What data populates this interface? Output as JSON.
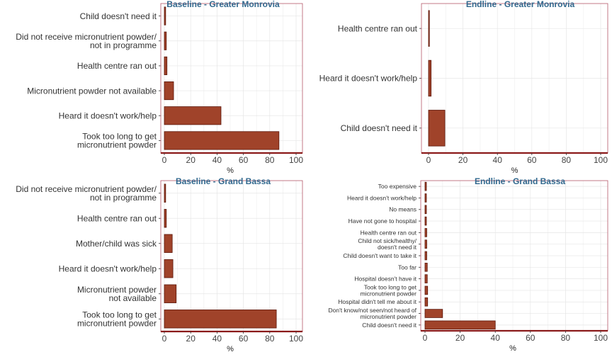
{
  "chart_data": [
    {
      "type": "bar",
      "orientation": "horizontal",
      "title": "Baseline - Greater Monrovia",
      "xlabel": "%",
      "xlim": [
        0,
        100
      ],
      "xticks": [
        0,
        20,
        40,
        60,
        80,
        100
      ],
      "categories": [
        "Child doesn't need it",
        "Did not receive micronutrient powder/\nnot in programme",
        "Health centre ran out",
        "Micronutrient powder not available",
        "Heard it doesn't work/help",
        "Took too long to get\nmicronutrient powder"
      ],
      "values": [
        1,
        1.5,
        2,
        7,
        43,
        87
      ],
      "bar_color": "#a0432a",
      "grid": true
    },
    {
      "type": "bar",
      "orientation": "horizontal",
      "title": "Endline - Greater Monrovia",
      "xlabel": "%",
      "xlim": [
        0,
        100
      ],
      "xticks": [
        0,
        20,
        40,
        60,
        80,
        100
      ],
      "categories": [
        "Health centre ran out",
        "Heard it doesn't work/help",
        "Child doesn't need it"
      ],
      "values": [
        0.5,
        1.5,
        9.5
      ],
      "bar_color": "#a0432a",
      "grid": true
    },
    {
      "type": "bar",
      "orientation": "horizontal",
      "title": "Baseline - Grand Bassa",
      "xlabel": "%",
      "xlim": [
        0,
        100
      ],
      "xticks": [
        0,
        20,
        40,
        60,
        80,
        100
      ],
      "categories": [
        "Did not receive micronutrient powder/\nnot in programme",
        "Health centre ran out",
        "Mother/child was sick",
        "Heard it doesn't work/help",
        "Micronutrient powder\nnot available",
        "Took too long to get\nmicronutrient powder"
      ],
      "values": [
        1,
        1.5,
        6,
        6.5,
        9,
        85
      ],
      "bar_color": "#a0432a",
      "grid": true
    },
    {
      "type": "bar",
      "orientation": "horizontal",
      "title": "Endline - Grand Bassa",
      "xlabel": "%",
      "xlim": [
        0,
        100
      ],
      "xticks": [
        0,
        20,
        40,
        60,
        80,
        100
      ],
      "categories": [
        "Too expensive",
        "Heard it doesn't work/help",
        "No means",
        "Have not gone to hospital",
        "Health centre ran out",
        "Child not sick/healthy/\ndoesn't need it",
        "Child doesn't want to take it",
        "Too far",
        "Hospital doesn't have it",
        "Took too long to get\nmicronutrient powder",
        "Hospital didn't tell me about it",
        "Don't know/not seen/not heard of\nmicronutrient powder",
        "Child doesn't need it"
      ],
      "values": [
        0.8,
        0.8,
        0.8,
        0.8,
        1,
        1,
        1,
        1.3,
        1.3,
        1.5,
        1.5,
        10,
        40
      ],
      "bar_color": "#a0432a",
      "grid": true
    }
  ]
}
